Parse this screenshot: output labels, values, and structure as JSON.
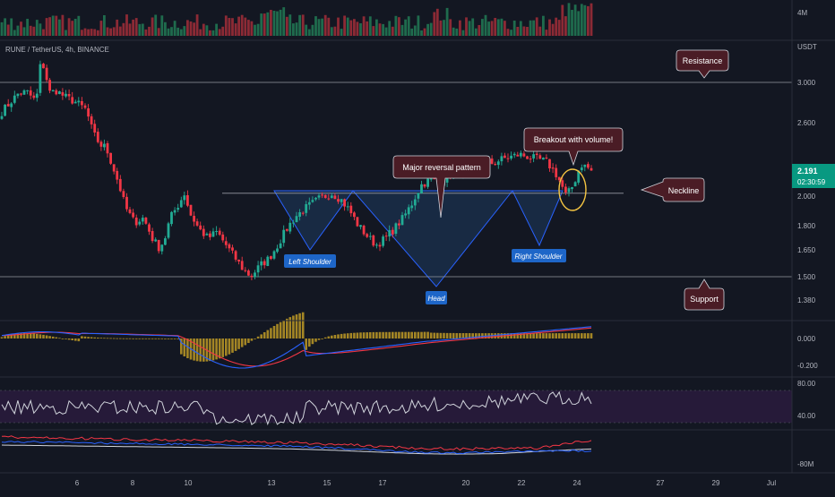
{
  "symbol_label": "RUNE / TetherUS, 4h, BINANCE",
  "axis_unit": "USDT",
  "volume_axis_label": "4M",
  "price_ticks": [
    "3.000",
    "2.600",
    "2.000",
    "1.800",
    "1.650",
    "1.500",
    "1.380"
  ],
  "price_tick_values": [
    3.0,
    2.6,
    2.0,
    1.8,
    1.65,
    1.5,
    1.38
  ],
  "last_price": "2.191",
  "countdown": "02:30:59",
  "macd_ticks": [
    "0.000",
    "-0.200"
  ],
  "rsi_ticks": [
    "80.00",
    "40.00"
  ],
  "obv_ticks": [
    "-80M"
  ],
  "x_labels": [
    "6",
    "8",
    "10",
    "13",
    "15",
    "17",
    "20",
    "22",
    "24",
    "27",
    "29",
    "Jul"
  ],
  "annotations": {
    "resistance": "Resistance",
    "support": "Support",
    "neckline": "Neckline",
    "major_reversal": "Major reversal pattern",
    "breakout": "Breakout with volume!",
    "left_shoulder": "Left Shoulder",
    "head": "Head",
    "right_shoulder": "Right Shoulder"
  },
  "colors": {
    "background": "#131722",
    "up": "#26a69a",
    "up_candle": "#22ab94",
    "down": "#f23645",
    "macd_line": "#2962ff",
    "signal_line": "#f23645",
    "histogram": "#c9a227",
    "rsi_line": "#d1d4dc",
    "rsi_band": "#2a1b3d",
    "pattern_fill": "#1e3a5f",
    "pattern_stroke": "#2962ff",
    "callout_fill": "#4a1c25",
    "callout_border": "#d1d4dc",
    "label_blue": "#1e66c8",
    "price_badge": "#089981",
    "breakout_circle": "#f5c542"
  },
  "chart_data": {
    "type": "candlestick",
    "x": [
      "Jun 5",
      "Jun 6",
      "Jun 7",
      "Jun 8",
      "Jun 9",
      "Jun 10",
      "Jun 11",
      "Jun 12",
      "Jun 13",
      "Jun 14",
      "Jun 15",
      "Jun 16",
      "Jun 17",
      "Jun 18",
      "Jun 19",
      "Jun 20",
      "Jun 21",
      "Jun 22",
      "Jun 23",
      "Jun 24"
    ],
    "close_approx": [
      2.8,
      3.25,
      2.95,
      2.9,
      2.85,
      2.75,
      2.5,
      2.4,
      1.95,
      1.75,
      1.9,
      1.85,
      1.7,
      1.6,
      1.47,
      1.8,
      1.97,
      1.75,
      1.9,
      2.19
    ],
    "levels": {
      "resistance": 3.0,
      "neckline": 2.02,
      "support": 1.5
    },
    "pattern": {
      "name": "Inverse Head and Shoulders",
      "left_shoulder": 1.66,
      "head": 1.45,
      "right_shoulder": 1.69
    },
    "last": 2.191,
    "indicators": [
      "volume",
      "MACD",
      "RSI",
      "OBV"
    ]
  }
}
